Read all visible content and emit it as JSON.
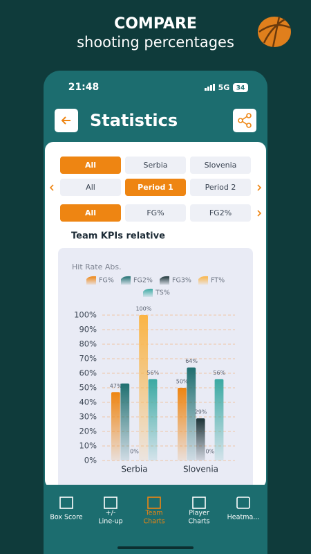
{
  "header": {
    "title": "COMPARE",
    "subtitle": "shooting percentages"
  },
  "status_bar": {
    "time": "21:48",
    "network": "5G",
    "battery": "34"
  },
  "screen": {
    "title": "Statistics"
  },
  "filters": [
    [
      "All",
      "Serbia",
      "Slovenia"
    ],
    [
      "All",
      "Period 1",
      "Period 2"
    ],
    [
      "All",
      "FG%",
      "FG2%"
    ]
  ],
  "section_title": "Team KPIs relative",
  "chart_data": {
    "type": "bar",
    "title": "Hit Rate Abs.",
    "categories": [
      "Serbia",
      "Slovenia"
    ],
    "series": [
      {
        "name": "FG%",
        "color": "#ee8512",
        "values": [
          47,
          50
        ],
        "value_labels": [
          "47%",
          "50%"
        ]
      },
      {
        "name": "FG2%",
        "color": "#1f6f70",
        "values": [
          53,
          64
        ],
        "value_labels": [
          null,
          "64%"
        ]
      },
      {
        "name": "FG3%",
        "color": "#1d3438",
        "values": [
          0,
          29
        ],
        "value_labels": [
          "0%",
          "29%"
        ]
      },
      {
        "name": "FT%",
        "color": "#fab445",
        "values": [
          100,
          0
        ],
        "value_labels": [
          "100%",
          "0%"
        ]
      },
      {
        "name": "TS%",
        "color": "#3aa9a2",
        "values": [
          56,
          56
        ],
        "value_labels": [
          "56%",
          "56%"
        ]
      }
    ],
    "ylim": [
      0,
      100
    ],
    "yticks": [
      {
        "value": 0,
        "label": "0%"
      },
      {
        "value": 10,
        "label": "10%"
      },
      {
        "value": 20,
        "label": "20%"
      },
      {
        "value": 30,
        "label": "30%"
      },
      {
        "value": 40,
        "label": "40%"
      },
      {
        "value": 50,
        "label": "50%"
      },
      {
        "value": 60,
        "label": "60%"
      },
      {
        "value": 70,
        "label": "70%"
      },
      {
        "value": 80,
        "label": "80%"
      },
      {
        "value": 90,
        "label": "90%"
      },
      {
        "value": 100,
        "label": "100%"
      }
    ],
    "grid": true
  },
  "nav": [
    [
      "Box Score"
    ],
    [
      "+/-",
      "Line-up"
    ],
    [
      "Team",
      "Charts"
    ],
    [
      "Player",
      "Charts"
    ],
    [
      "Heatma..."
    ]
  ]
}
